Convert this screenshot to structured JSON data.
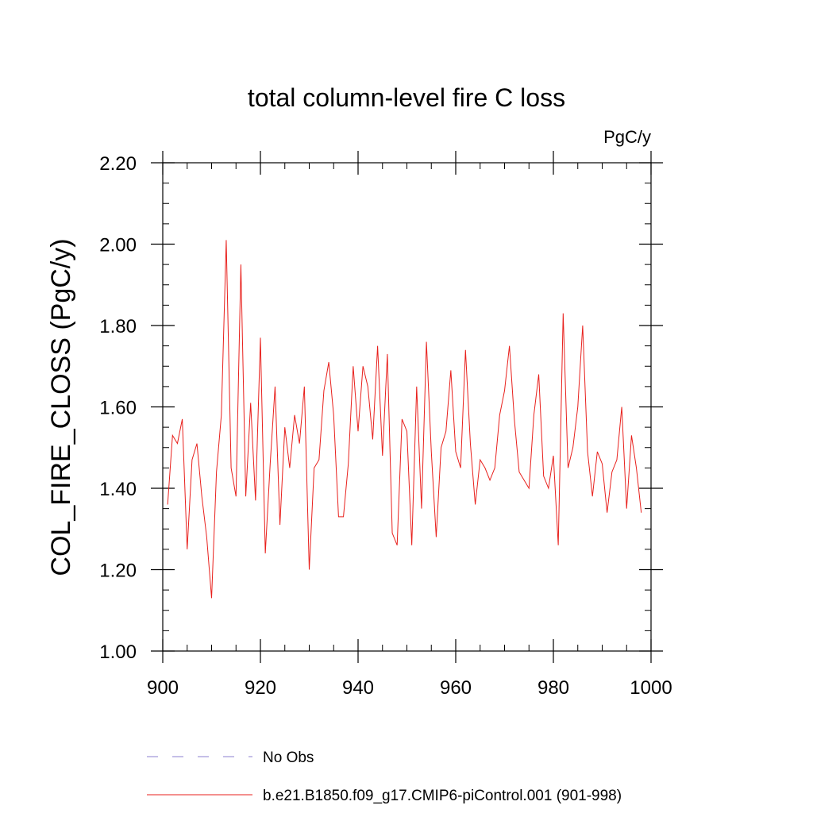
{
  "chart_data": {
    "type": "line",
    "title": "total column-level fire C loss",
    "units_label": "PgC/y",
    "ylabel": "COL_FIRE_CLOSS  (PgC/y)",
    "xlabel": "",
    "xlim": [
      900,
      1000
    ],
    "ylim": [
      1.0,
      2.2
    ],
    "x_ticks": [
      900,
      920,
      940,
      960,
      980,
      1000
    ],
    "x_tick_labels": [
      "900",
      "920",
      "940",
      "960",
      "980",
      "1000"
    ],
    "y_ticks": [
      1.0,
      1.2,
      1.4,
      1.6,
      1.8,
      2.0,
      2.2
    ],
    "y_tick_labels": [
      "1.00",
      "1.20",
      "1.40",
      "1.60",
      "1.80",
      "2.00",
      "2.20"
    ],
    "x_minor_step": 5,
    "y_minor_step": 0.05,
    "grid": false,
    "legend_position": "bottom",
    "legend": [
      {
        "label": "No Obs",
        "color": "#8b7fd0",
        "style": "dashed"
      },
      {
        "label": "b.e21.B1850.f09_g17.CMIP6-piControl.001 (901-998)",
        "color": "#e8201c",
        "style": "solid"
      }
    ],
    "series": [
      {
        "name": "b.e21.B1850.f09_g17.CMIP6-piControl.001 (901-998)",
        "color": "#e8201c",
        "x_start": 901,
        "x_step": 1,
        "values": [
          1.36,
          1.53,
          1.51,
          1.57,
          1.25,
          1.47,
          1.51,
          1.38,
          1.28,
          1.13,
          1.44,
          1.58,
          2.01,
          1.45,
          1.38,
          1.95,
          1.38,
          1.61,
          1.37,
          1.77,
          1.24,
          1.46,
          1.65,
          1.31,
          1.55,
          1.45,
          1.58,
          1.51,
          1.65,
          1.2,
          1.45,
          1.47,
          1.64,
          1.71,
          1.58,
          1.33,
          1.33,
          1.46,
          1.7,
          1.54,
          1.7,
          1.65,
          1.52,
          1.75,
          1.48,
          1.73,
          1.29,
          1.26,
          1.57,
          1.54,
          1.26,
          1.65,
          1.35,
          1.76,
          1.49,
          1.28,
          1.5,
          1.54,
          1.69,
          1.49,
          1.45,
          1.74,
          1.51,
          1.36,
          1.47,
          1.45,
          1.42,
          1.45,
          1.58,
          1.64,
          1.75,
          1.57,
          1.44,
          1.42,
          1.4,
          1.58,
          1.68,
          1.43,
          1.4,
          1.48,
          1.26,
          1.83,
          1.45,
          1.5,
          1.6,
          1.8,
          1.49,
          1.38,
          1.49,
          1.46,
          1.34,
          1.44,
          1.47,
          1.6,
          1.35,
          1.53,
          1.45,
          1.34
        ]
      }
    ]
  }
}
